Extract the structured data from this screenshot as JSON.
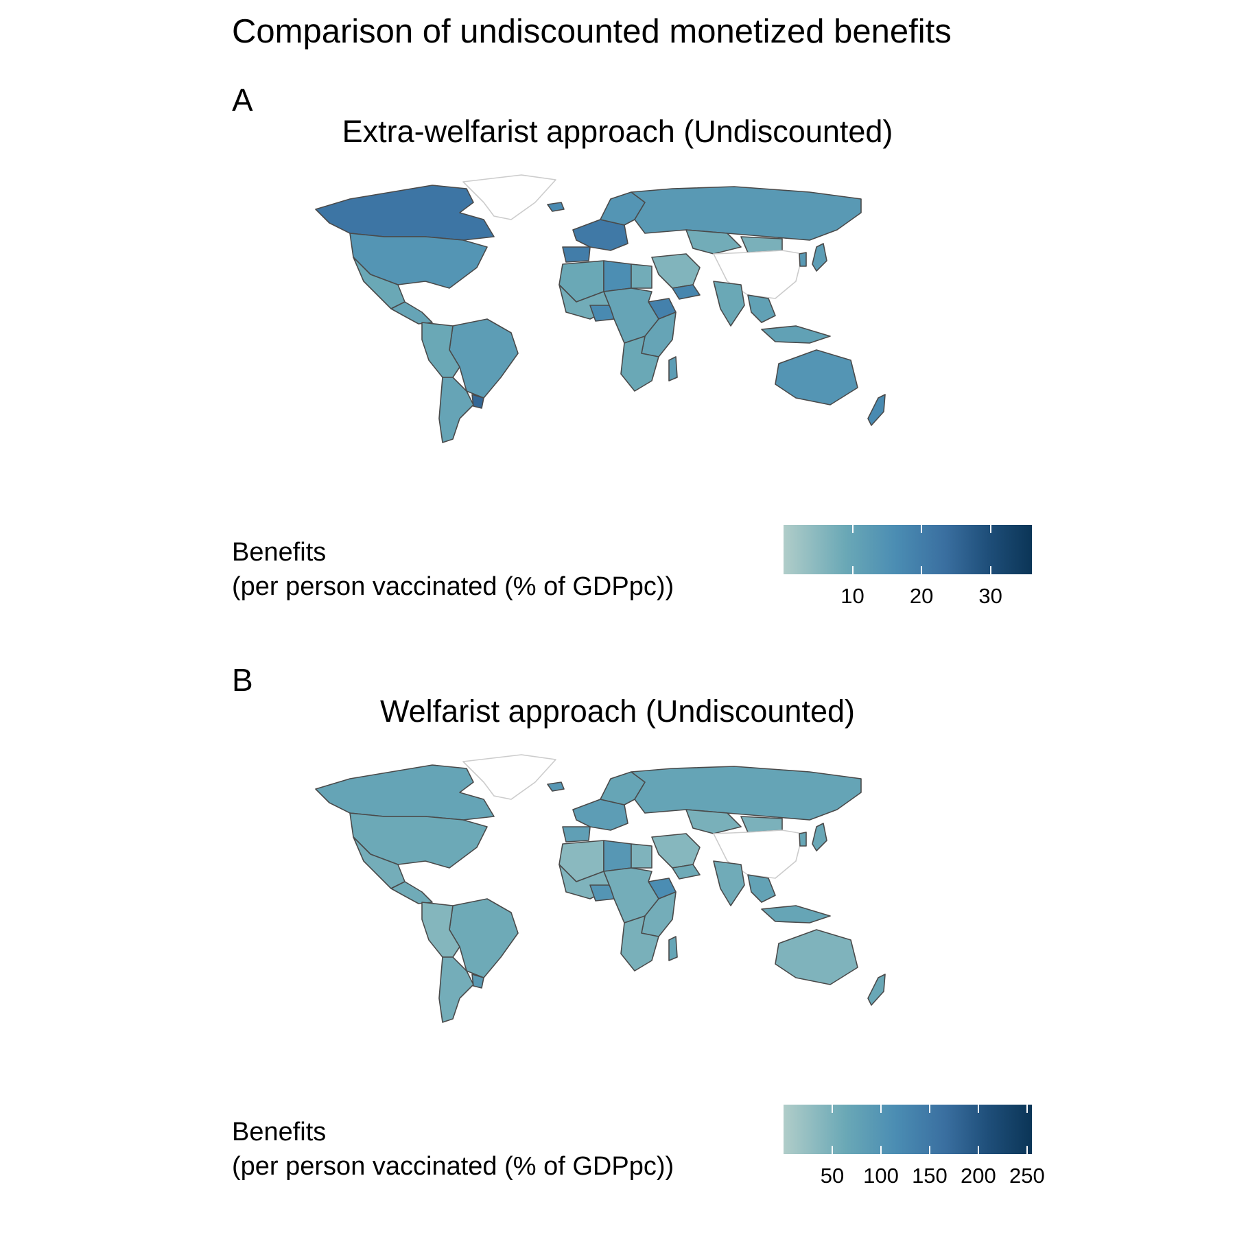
{
  "figure": {
    "title": "Comparison of undiscounted monetized benefits"
  },
  "panels": [
    {
      "letter": "A",
      "title": "Extra-welfarist approach (Undiscounted)",
      "legend": {
        "title_line1": "Benefits",
        "title_line2": "(per person vaccinated (% of GDPpc))",
        "range": [
          0,
          36
        ],
        "ticks": [
          10,
          20,
          30
        ]
      },
      "regions": [
        {
          "name": "Canada",
          "value": 22
        },
        {
          "name": "United States",
          "value": 14
        },
        {
          "name": "Mexico",
          "value": 9
        },
        {
          "name": "Central America",
          "value": 10
        },
        {
          "name": "Brazil",
          "value": 12
        },
        {
          "name": "Andean South America",
          "value": 9
        },
        {
          "name": "Argentina",
          "value": 10
        },
        {
          "name": "Uruguay",
          "value": 25
        },
        {
          "name": "Greenland",
          "value": null
        },
        {
          "name": "Iceland",
          "value": 17
        },
        {
          "name": "Western Europe",
          "value": 21
        },
        {
          "name": "Spain",
          "value": 20
        },
        {
          "name": "Scandinavia",
          "value": 14
        },
        {
          "name": "Russia",
          "value": 13
        },
        {
          "name": "Kazakhstan",
          "value": 8
        },
        {
          "name": "Mongolia",
          "value": 7
        },
        {
          "name": "China",
          "value": null
        },
        {
          "name": "Japan",
          "value": 12
        },
        {
          "name": "Korea",
          "value": 13
        },
        {
          "name": "Middle East",
          "value": 6
        },
        {
          "name": "Yemen",
          "value": 18
        },
        {
          "name": "India",
          "value": 9
        },
        {
          "name": "Southeast Asia",
          "value": 11
        },
        {
          "name": "Indonesia",
          "value": 11
        },
        {
          "name": "North Africa",
          "value": 9
        },
        {
          "name": "Libya",
          "value": 16
        },
        {
          "name": "Egypt",
          "value": 8
        },
        {
          "name": "West Africa",
          "value": 8
        },
        {
          "name": "Nigeria",
          "value": 17
        },
        {
          "name": "Ethiopia",
          "value": 19
        },
        {
          "name": "Central Africa",
          "value": 10
        },
        {
          "name": "East Africa",
          "value": 10
        },
        {
          "name": "Southern Africa",
          "value": 9
        },
        {
          "name": "Madagascar",
          "value": 12
        },
        {
          "name": "Australia",
          "value": 14
        },
        {
          "name": "New Zealand",
          "value": 17
        }
      ]
    },
    {
      "letter": "B",
      "title": "Welfarist approach (Undiscounted)",
      "legend": {
        "title_line1": "Benefits",
        "title_line2": "(per person vaccinated (% of GDPpc))",
        "range": [
          0,
          255
        ],
        "ticks": [
          50,
          100,
          150,
          200,
          250
        ]
      },
      "regions": [
        {
          "name": "Canada",
          "value": 72
        },
        {
          "name": "United States",
          "value": 62
        },
        {
          "name": "Mexico",
          "value": 55
        },
        {
          "name": "Central America",
          "value": 58
        },
        {
          "name": "Brazil",
          "value": 60
        },
        {
          "name": "Andean South America",
          "value": 40
        },
        {
          "name": "Argentina",
          "value": 55
        },
        {
          "name": "Uruguay",
          "value": 90
        },
        {
          "name": "Greenland",
          "value": null
        },
        {
          "name": "Iceland",
          "value": 95
        },
        {
          "name": "Western Europe",
          "value": 85
        },
        {
          "name": "Spain",
          "value": 80
        },
        {
          "name": "Scandinavia",
          "value": 70
        },
        {
          "name": "Russia",
          "value": 72
        },
        {
          "name": "Kazakhstan",
          "value": 50
        },
        {
          "name": "Mongolia",
          "value": 48
        },
        {
          "name": "China",
          "value": null
        },
        {
          "name": "Japan",
          "value": 65
        },
        {
          "name": "Korea",
          "value": 68
        },
        {
          "name": "Middle East",
          "value": 38
        },
        {
          "name": "Yemen",
          "value": 60
        },
        {
          "name": "India",
          "value": 58
        },
        {
          "name": "Southeast Asia",
          "value": 75
        },
        {
          "name": "Indonesia",
          "value": 70
        },
        {
          "name": "North Africa",
          "value": 35
        },
        {
          "name": "Libya",
          "value": 95
        },
        {
          "name": "Egypt",
          "value": 45
        },
        {
          "name": "West Africa",
          "value": 45
        },
        {
          "name": "Nigeria",
          "value": 100
        },
        {
          "name": "Ethiopia",
          "value": 115
        },
        {
          "name": "Central Africa",
          "value": 55
        },
        {
          "name": "East Africa",
          "value": 55
        },
        {
          "name": "Southern Africa",
          "value": 50
        },
        {
          "name": "Madagascar",
          "value": 70
        },
        {
          "name": "Australia",
          "value": 45
        },
        {
          "name": "New Zealand",
          "value": 65
        }
      ]
    }
  ]
}
